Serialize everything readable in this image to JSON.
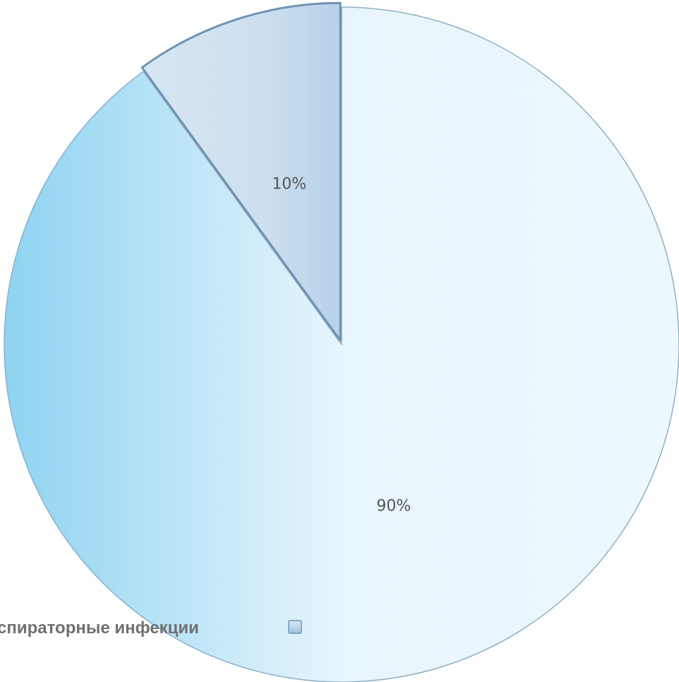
{
  "chart_data": {
    "type": "pie",
    "slices": [
      {
        "label": "90%",
        "value": 90,
        "color": "#e8f6fd"
      },
      {
        "label": "10%",
        "value": 10,
        "color": "#c9dff0"
      }
    ],
    "legend": {
      "entries": [
        {
          "label": "спираторные инфекции",
          "color": "#b6d2ec"
        }
      ],
      "placement": "bottom-left"
    }
  }
}
